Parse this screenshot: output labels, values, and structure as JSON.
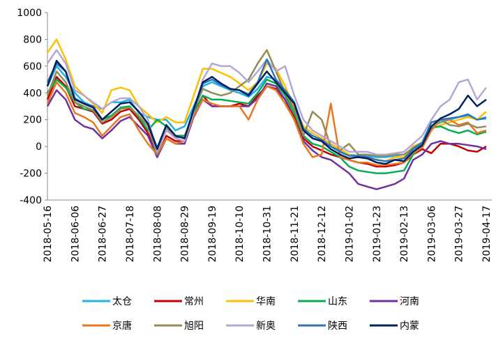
{
  "chart_data": {
    "type": "line",
    "categories": [
      "2018-05-16",
      null,
      null,
      "2018-06-06",
      null,
      null,
      "2018-06-27",
      null,
      null,
      "2018-07-18",
      null,
      null,
      "2018-08-08",
      null,
      null,
      "2018-08-29",
      null,
      null,
      "2018-09-19",
      null,
      null,
      "2018-10-10",
      null,
      null,
      "2018-10-31",
      null,
      null,
      "2018-11-21",
      null,
      null,
      "2018-12-12",
      null,
      null,
      "2019-01-02",
      null,
      null,
      "2019-01-23",
      null,
      null,
      "2019-02-13",
      null,
      null,
      "2019-03-06",
      null,
      null,
      "2019-03-27",
      null,
      null,
      "2019-04-17"
    ],
    "ylim": [
      -400,
      1000
    ],
    "yticks": [
      -400,
      -200,
      0,
      200,
      400,
      600,
      800,
      1000
    ],
    "grid": false,
    "series": [
      {
        "name": "太仓",
        "color": "#1fb0e8",
        "values": [
          450,
          600,
          520,
          400,
          330,
          300,
          280,
          330,
          330,
          350,
          250,
          220,
          200,
          200,
          120,
          150,
          300,
          450,
          480,
          450,
          420,
          400,
          370,
          430,
          520,
          500,
          400,
          300,
          150,
          60,
          40,
          0,
          -30,
          -60,
          -70,
          -70,
          -80,
          -80,
          -70,
          -60,
          -20,
          20,
          150,
          180,
          200,
          220,
          230,
          200,
          220
        ]
      },
      {
        "name": "常州",
        "color": "#c00000",
        "values": [
          350,
          520,
          450,
          300,
          280,
          260,
          170,
          200,
          260,
          280,
          200,
          100,
          -80,
          80,
          40,
          40,
          250,
          380,
          300,
          300,
          300,
          320,
          300,
          380,
          450,
          430,
          350,
          220,
          60,
          0,
          -30,
          -60,
          -80,
          -100,
          -120,
          -130,
          -150,
          -150,
          -140,
          -120,
          -60,
          -20,
          -50,
          20,
          20,
          0,
          -30,
          -40,
          0
        ]
      },
      {
        "name": "华南",
        "color": "#ffc000",
        "values": [
          700,
          800,
          650,
          450,
          380,
          320,
          250,
          420,
          440,
          420,
          300,
          240,
          180,
          220,
          180,
          180,
          380,
          580,
          580,
          550,
          520,
          470,
          420,
          480,
          620,
          580,
          450,
          300,
          150,
          100,
          60,
          20,
          -20,
          -60,
          -80,
          -80,
          -100,
          -110,
          -80,
          -80,
          0,
          30,
          130,
          160,
          180,
          200,
          220,
          200,
          260
        ]
      },
      {
        "name": "山东",
        "color": "#00b050",
        "values": [
          400,
          500,
          440,
          330,
          280,
          270,
          200,
          230,
          290,
          300,
          220,
          120,
          200,
          150,
          80,
          80,
          240,
          380,
          350,
          350,
          340,
          330,
          320,
          400,
          500,
          470,
          380,
          250,
          80,
          20,
          0,
          -40,
          -80,
          -150,
          -180,
          -190,
          -200,
          -200,
          -190,
          -180,
          -60,
          0,
          140,
          150,
          120,
          100,
          120,
          90,
          110
        ]
      },
      {
        "name": "河南",
        "color": "#7030a0",
        "values": [
          300,
          420,
          350,
          200,
          150,
          130,
          60,
          120,
          190,
          220,
          150,
          80,
          -80,
          60,
          20,
          20,
          220,
          350,
          300,
          300,
          300,
          300,
          300,
          360,
          470,
          450,
          350,
          200,
          40,
          -30,
          -80,
          -100,
          -150,
          -200,
          -280,
          -300,
          -320,
          -300,
          -280,
          -240,
          -100,
          -60,
          20,
          40,
          20,
          20,
          10,
          0,
          -20
        ]
      },
      {
        "name": "京唐",
        "color": "#e87722",
        "values": [
          320,
          480,
          400,
          250,
          220,
          180,
          80,
          150,
          220,
          240,
          120,
          20,
          -60,
          60,
          20,
          40,
          230,
          350,
          320,
          300,
          300,
          300,
          200,
          350,
          450,
          420,
          320,
          200,
          20,
          -80,
          -60,
          320,
          -80,
          -100,
          -120,
          -120,
          -140,
          -140,
          -130,
          -120,
          -50,
          -10,
          120,
          200,
          200,
          160,
          180,
          100,
          120
        ]
      },
      {
        "name": "旭阳",
        "color": "#948a54",
        "values": [
          380,
          560,
          480,
          330,
          300,
          270,
          180,
          220,
          280,
          290,
          230,
          150,
          -60,
          140,
          70,
          70,
          270,
          430,
          400,
          380,
          400,
          450,
          500,
          620,
          720,
          560,
          400,
          280,
          80,
          260,
          200,
          0,
          -30,
          20,
          -60,
          -60,
          -70,
          -70,
          -60,
          -60,
          -10,
          30,
          180,
          200,
          160,
          150,
          170,
          140,
          150
        ]
      },
      {
        "name": "新奥",
        "color": "#b4a7d6",
        "values": [
          620,
          720,
          620,
          420,
          380,
          330,
          280,
          330,
          360,
          360,
          300,
          200,
          -40,
          120,
          60,
          40,
          260,
          500,
          620,
          600,
          600,
          550,
          480,
          560,
          650,
          560,
          600,
          380,
          200,
          120,
          80,
          40,
          0,
          -40,
          -40,
          -40,
          -60,
          -60,
          -50,
          -40,
          20,
          80,
          200,
          300,
          350,
          480,
          500,
          350,
          440
        ]
      },
      {
        "name": "陕西",
        "color": "#2e75b6",
        "values": [
          480,
          620,
          560,
          360,
          320,
          300,
          200,
          260,
          320,
          330,
          260,
          170,
          -10,
          160,
          80,
          60,
          270,
          470,
          500,
          460,
          430,
          420,
          390,
          480,
          650,
          500,
          420,
          330,
          130,
          80,
          50,
          0,
          -40,
          -70,
          -70,
          -80,
          -100,
          -110,
          -100,
          -90,
          -20,
          30,
          180,
          200,
          210,
          220,
          240,
          200,
          210
        ]
      },
      {
        "name": "内蒙",
        "color": "#002060",
        "values": [
          450,
          640,
          560,
          350,
          320,
          290,
          200,
          260,
          320,
          330,
          260,
          170,
          -20,
          160,
          80,
          60,
          280,
          480,
          520,
          470,
          430,
          420,
          380,
          470,
          560,
          480,
          400,
          320,
          120,
          60,
          40,
          -20,
          -60,
          -90,
          -80,
          -90,
          -120,
          -130,
          -100,
          -110,
          -40,
          10,
          150,
          210,
          240,
          280,
          380,
          300,
          350
        ]
      }
    ]
  }
}
